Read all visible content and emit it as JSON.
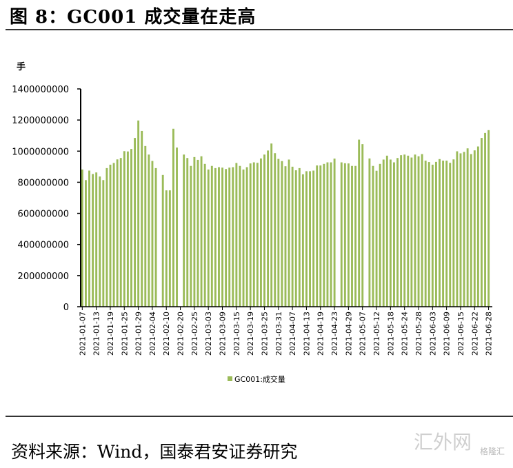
{
  "title": "图 8：GC001 成交量在走高",
  "source": "资料来源：Wind，国泰君安证券研究",
  "watermark": "汇外网",
  "watermark_sub": "格隆汇",
  "chart_data": {
    "type": "bar",
    "title": "GC001成交量在走高",
    "ylabel": "手",
    "xlabel": "",
    "ylim": [
      0,
      1400000000
    ],
    "yticks": [
      0,
      200000000,
      400000000,
      600000000,
      800000000,
      1000000000,
      1200000000,
      1400000000
    ],
    "ytick_labels": [
      "0",
      "200000000",
      "400000000",
      "600000000",
      "800000000",
      "1000000000",
      "1200000000",
      "1400000000"
    ],
    "tick_every": 4,
    "xtick_labels": [
      "2021-01-07",
      "2021-01-13",
      "2021-01-19",
      "2021-01-25",
      "2021-01-29",
      "2021-02-04",
      "2021-02-10",
      "2021-02-20",
      "2021-02-25",
      "2021-03-03",
      "2021-03-09",
      "2021-03-15",
      "2021-03-19",
      "2021-03-25",
      "2021-03-31",
      "2021-04-07",
      "2021-04-13",
      "2021-04-19",
      "2021-04-23",
      "2021-04-29",
      "2021-05-07",
      "2021-05-12",
      "2021-05-18",
      "2021-05-24",
      "2021-05-28",
      "2021-06-03",
      "2021-06-09",
      "2021-06-15",
      "2021-06-22",
      "2021-06-28"
    ],
    "legend": "GC001:成交量",
    "legend_position": "bottom",
    "color": "#9bbb59",
    "grid": false,
    "series": [
      {
        "name": "GC001:成交量",
        "unit": "1e8 手",
        "values": [
          8.82,
          8.14,
          8.75,
          8.53,
          8.63,
          8.37,
          8.14,
          8.91,
          9.13,
          9.24,
          9.47,
          9.56,
          10.0,
          9.98,
          10.14,
          10.85,
          11.97,
          11.3,
          10.33,
          9.78,
          9.37,
          8.91,
          null,
          8.47,
          7.48,
          7.48,
          11.44,
          10.23,
          null,
          9.78,
          9.56,
          9.05,
          9.62,
          9.44,
          9.67,
          9.18,
          8.82,
          9.05,
          8.91,
          8.97,
          8.94,
          8.85,
          8.94,
          8.97,
          9.24,
          9.05,
          8.82,
          8.97,
          9.21,
          9.28,
          9.25,
          9.53,
          9.78,
          10.04,
          10.49,
          9.87,
          9.5,
          9.36,
          9.03,
          9.46,
          9.0,
          8.77,
          8.91,
          8.51,
          8.71,
          8.71,
          8.75,
          9.08,
          9.08,
          9.18,
          9.28,
          9.28,
          9.52,
          null,
          9.28,
          9.22,
          9.21,
          9.05,
          9.05,
          10.74,
          10.45,
          null,
          9.53,
          9.05,
          8.74,
          9.18,
          9.46,
          9.71,
          9.46,
          9.28,
          9.56,
          9.74,
          9.78,
          9.71,
          9.59,
          9.78,
          9.67,
          9.81,
          9.39,
          9.3,
          9.13,
          9.31,
          9.49,
          9.39,
          9.39,
          9.25,
          9.47,
          9.99,
          9.86,
          9.95,
          10.18,
          9.81,
          10.05,
          10.3,
          10.85,
          11.17,
          11.35
        ]
      }
    ]
  }
}
